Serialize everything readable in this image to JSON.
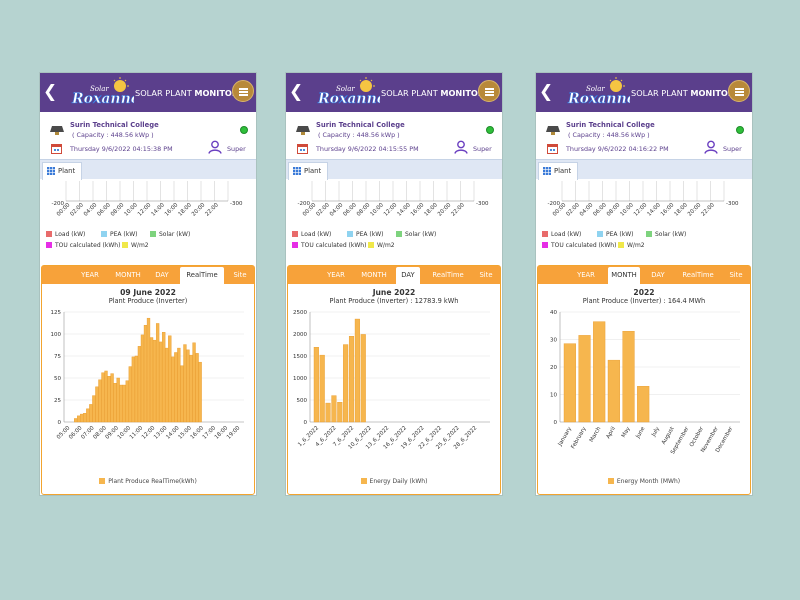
{
  "app": {
    "logo_text": "Roxanne",
    "logo_small_text": "Solar",
    "title_normal": "SOLAR PLANT ",
    "title_bold": "MONITORING"
  },
  "colors": {
    "header_purple": "#5b3f8c",
    "tab_orange": "#f7a23a",
    "bar_orange": "#f6b64e",
    "status_green": "#2fbf3a",
    "menu_gold": "#b8893a"
  },
  "icons": {
    "back": "chevron-left-icon",
    "menu": "hamburger-menu-icon",
    "site": "solar-panel-icon",
    "calendar": "calendar-icon",
    "user": "user-icon",
    "plant_tab": "grid-icon",
    "status": "status-dot-icon"
  },
  "plant_tab_label": "Plant",
  "top_legend": [
    {
      "label": "Load (kW)",
      "color": "#e86b6b"
    },
    {
      "label": "PEA (kW)",
      "color": "#8fd3f0"
    },
    {
      "label": "Solar (kW)",
      "color": "#7ed37e"
    },
    {
      "label": "TOU calculated (kWh)",
      "color": "#e62ee6"
    },
    {
      "label": "W/m2",
      "color": "#f0e84a"
    }
  ],
  "phones": [
    {
      "site_name": "Surin Technical College",
      "capacity": "( Capacity : 448.56 kWp )",
      "datetime": "Thursday 9/6/2022 04:15:38 PM",
      "user": "Super",
      "top_chart": {
        "x_ticks": [
          "00:00",
          "02:00",
          "04:00",
          "06:00",
          "08:00",
          "10:00",
          "12:00",
          "14:00",
          "16:00",
          "18:00",
          "20:00",
          "22:00"
        ],
        "left_tick": "-200",
        "right_tick": "-300"
      },
      "tabs": [
        "YEAR",
        "MONTH",
        "DAY",
        "RealTime",
        "Site"
      ],
      "active_tab": 3,
      "chart_title": "09 June 2022",
      "chart_subtitle": "Plant Produce (Inverter)",
      "legend": "Plant Produce RealTime(kWh)"
    },
    {
      "site_name": "Surin Technical College",
      "capacity": "( Capacity : 448.56 kWp )",
      "datetime": "Thursday 9/6/2022 04:15:55 PM",
      "user": "Super",
      "top_chart": {
        "x_ticks": [
          "00:00",
          "02:00",
          "04:00",
          "06:00",
          "08:00",
          "10:00",
          "12:00",
          "14:00",
          "16:00",
          "18:00",
          "20:00",
          "22:00"
        ],
        "left_tick": "-200",
        "right_tick": "-300"
      },
      "tabs": [
        "YEAR",
        "MONTH",
        "DAY",
        "RealTime",
        "Site"
      ],
      "active_tab": 2,
      "chart_title": "June 2022",
      "chart_subtitle": "Plant Produce (Inverter) : 12783.9 kWh",
      "legend": "Energy Daily (kWh)"
    },
    {
      "site_name": "Surin Technical College",
      "capacity": "( Capacity : 448.56 kWp )",
      "datetime": "Thursday 9/6/2022 04:16:22 PM",
      "user": "Super",
      "top_chart": {
        "x_ticks": [
          "00:00",
          "02:00",
          "04:00",
          "06:00",
          "08:00",
          "10:00",
          "12:00",
          "14:00",
          "16:00",
          "18:00",
          "20:00",
          "22:00"
        ],
        "left_tick": "-200",
        "right_tick": "-300"
      },
      "tabs": [
        "YEAR",
        "MONTH",
        "DAY",
        "RealTime",
        "Site"
      ],
      "active_tab": 1,
      "chart_title": "2022",
      "chart_subtitle": "Plant Produce (Inverter) : 164.4 MWh",
      "legend": "Energy Month (MWh)"
    }
  ],
  "chart_data": [
    {
      "type": "bar",
      "title": "09 June 2022",
      "subtitle": "Plant Produce (Inverter)",
      "ylim": [
        0,
        125
      ],
      "y_ticks": [
        0,
        25,
        50,
        75,
        100,
        125
      ],
      "x_tick_labels": [
        "05:00",
        "06:00",
        "07:00",
        "08:00",
        "09:00",
        "10:00",
        "11:00",
        "12:00",
        "13:00",
        "14:00",
        "15:00",
        "16:00",
        "17:00",
        "18:00",
        "19:00"
      ],
      "x_start_hour": 5,
      "x_end_hour": 19,
      "x_unit": "hour",
      "x": [
        5.75,
        6.0,
        6.25,
        6.5,
        6.75,
        7.0,
        7.25,
        7.5,
        7.75,
        8.0,
        8.25,
        8.5,
        8.75,
        9.0,
        9.25,
        9.5,
        9.75,
        10.0,
        10.25,
        10.5,
        10.75,
        11.0,
        11.25,
        11.5,
        11.75,
        12.0,
        12.25,
        12.5,
        12.75,
        13.0,
        13.25,
        13.5,
        13.75,
        14.0,
        14.25,
        14.5,
        14.75,
        15.0,
        15.25,
        15.5,
        15.75,
        16.0
      ],
      "values": [
        4,
        7,
        9,
        10,
        15,
        20,
        30,
        40,
        48,
        56,
        58,
        52,
        55,
        44,
        50,
        42,
        42,
        47,
        63,
        74,
        75,
        86,
        99,
        110,
        118,
        96,
        93,
        112,
        91,
        102,
        84,
        98,
        74,
        79,
        84,
        64,
        88,
        82,
        76,
        90,
        78,
        68
      ],
      "legend": "Plant Produce RealTime(kWh)"
    },
    {
      "type": "bar",
      "title": "June 2022",
      "subtitle": "Plant Produce (Inverter) : 12783.9 kWh",
      "ylim": [
        0,
        2500
      ],
      "y_ticks": [
        0,
        500,
        1000,
        1500,
        2000,
        2500
      ],
      "x_tick_labels": [
        "1_6_2022",
        "4_6_2022",
        "7_6_2022",
        "10_6_2022",
        "13_6_2022",
        "16_6_2022",
        "19_6_2022",
        "22_6_2022",
        "25_6_2022",
        "28_6_2022"
      ],
      "x": [
        1,
        2,
        3,
        4,
        5,
        6,
        7,
        8,
        9
      ],
      "values": [
        1700,
        1520,
        430,
        600,
        450,
        1760,
        1950,
        2340,
        1990
      ],
      "legend": "Energy Daily (kWh)"
    },
    {
      "type": "bar",
      "title": "2022",
      "subtitle": "Plant Produce (Inverter) : 164.4 MWh",
      "ylim": [
        0,
        40
      ],
      "y_ticks": [
        0,
        10,
        20,
        30,
        40
      ],
      "categories": [
        "January",
        "February",
        "March",
        "April",
        "May",
        "June",
        "July",
        "August",
        "September",
        "October",
        "November",
        "December"
      ],
      "values": [
        28.5,
        31.5,
        36.5,
        22.5,
        33,
        13,
        null,
        null,
        null,
        null,
        null,
        null
      ],
      "legend": "Energy Month (MWh)"
    }
  ]
}
